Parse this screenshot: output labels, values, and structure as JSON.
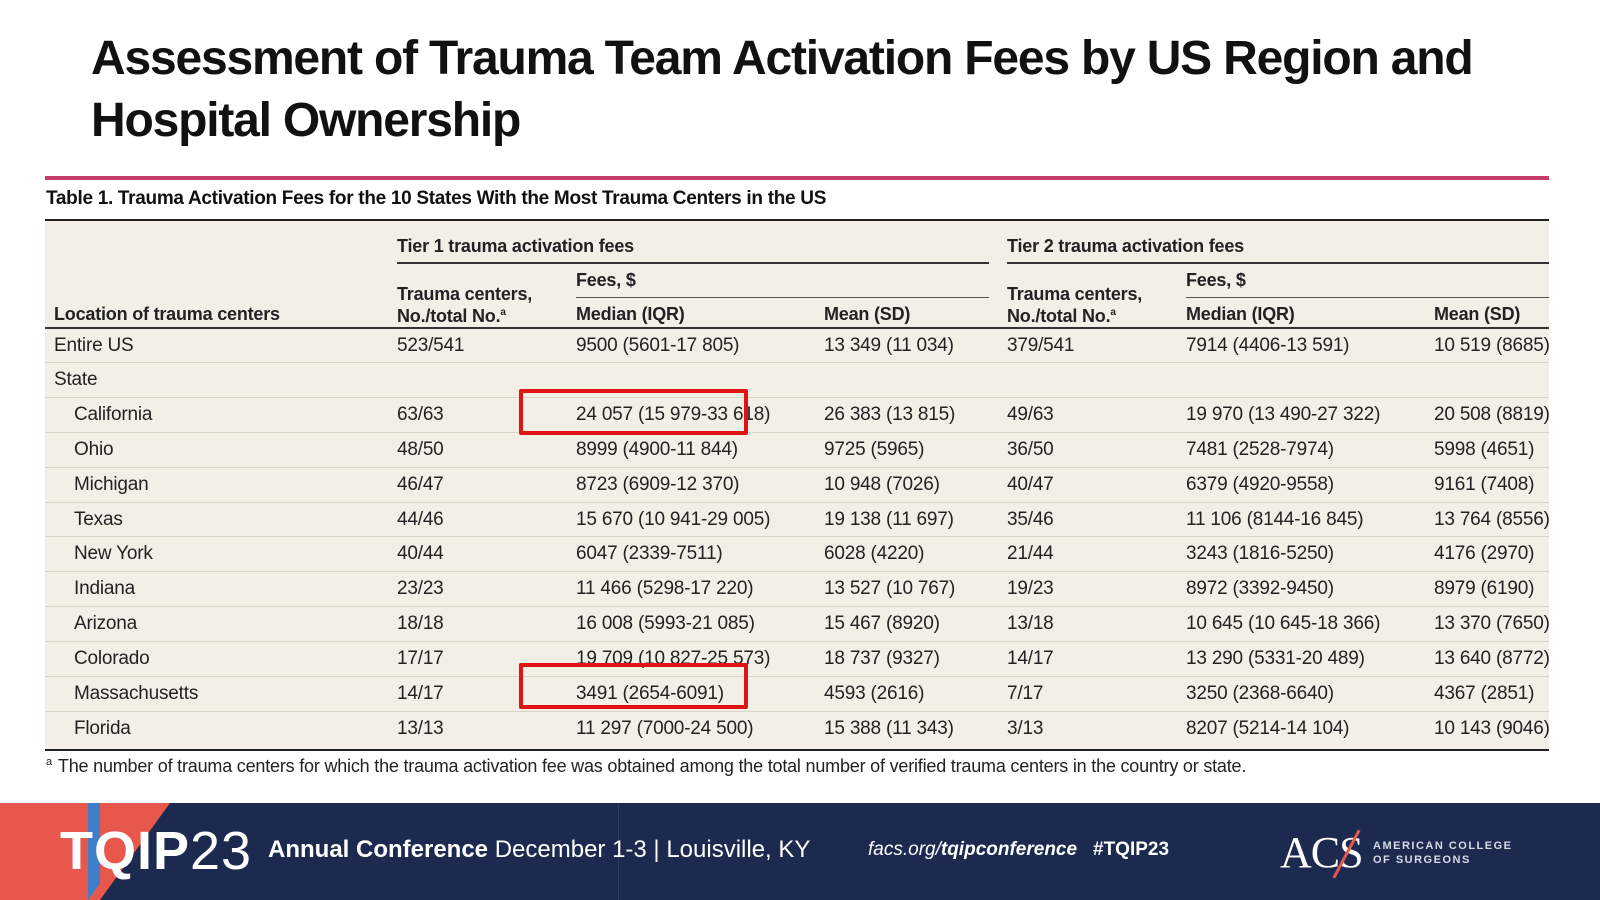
{
  "title": "Assessment of Trauma Team Activation Fees by US Region and Hospital Ownership",
  "caption": "Table 1. Trauma Activation Fees for the 10 States With the Most Trauma Centers in the US",
  "header": {
    "location": "Location of trauma centers",
    "tier1": "Tier 1 trauma activation fees",
    "tier2": "Tier 2 trauma activation fees",
    "centers_line1": "Trauma centers,",
    "centers_line2": "No./total No.",
    "sup_a": "a",
    "fees": "Fees, $",
    "median": "Median (IQR)",
    "mean": "Mean (SD)"
  },
  "rows": [
    {
      "loc": "Entire US",
      "t1c": "523/541",
      "t1med": "9500 (5601-17 805)",
      "t1mean": "13 349 (11 034)",
      "t2c": "379/541",
      "t2med": "7914 (4406-13 591)",
      "t2mean": "10 519 (8685)"
    },
    {
      "loc": "State",
      "t1c": "",
      "t1med": "",
      "t1mean": "",
      "t2c": "",
      "t2med": "",
      "t2mean": ""
    },
    {
      "loc": "California",
      "t1c": "63/63",
      "t1med": "24 057 (15 979-33 618)",
      "t1mean": "26 383 (13 815)",
      "t2c": "49/63",
      "t2med": "19 970 (13 490-27 322)",
      "t2mean": "20 508 (8819)"
    },
    {
      "loc": "Ohio",
      "t1c": "48/50",
      "t1med": "8999 (4900-11 844)",
      "t1mean": "9725 (5965)",
      "t2c": "36/50",
      "t2med": "7481 (2528-7974)",
      "t2mean": "5998 (4651)"
    },
    {
      "loc": "Michigan",
      "t1c": "46/47",
      "t1med": "8723 (6909-12 370)",
      "t1mean": "10 948 (7026)",
      "t2c": "40/47",
      "t2med": "6379 (4920-9558)",
      "t2mean": "9161 (7408)"
    },
    {
      "loc": "Texas",
      "t1c": "44/46",
      "t1med": "15 670 (10 941-29 005)",
      "t1mean": "19 138 (11 697)",
      "t2c": "35/46",
      "t2med": "11 106 (8144-16 845)",
      "t2mean": "13 764 (8556)"
    },
    {
      "loc": "New York",
      "t1c": "40/44",
      "t1med": "6047 (2339-7511)",
      "t1mean": "6028 (4220)",
      "t2c": "21/44",
      "t2med": "3243 (1816-5250)",
      "t2mean": "4176 (2970)"
    },
    {
      "loc": "Indiana",
      "t1c": "23/23",
      "t1med": "11 466 (5298-17 220)",
      "t1mean": "13 527 (10 767)",
      "t2c": "19/23",
      "t2med": "8972 (3392-9450)",
      "t2mean": "8979 (6190)"
    },
    {
      "loc": "Arizona",
      "t1c": "18/18",
      "t1med": "16 008 (5993-21 085)",
      "t1mean": "15 467 (8920)",
      "t2c": "13/18",
      "t2med": "10 645 (10 645-18 366)",
      "t2mean": "13 370 (7650)"
    },
    {
      "loc": "Colorado",
      "t1c": "17/17",
      "t1med": "19 709 (10 827-25 573)",
      "t1mean": "18 737 (9327)",
      "t2c": "14/17",
      "t2med": "13 290 (5331-20 489)",
      "t2mean": "13 640 (8772)"
    },
    {
      "loc": "Massachusetts",
      "t1c": "14/17",
      "t1med": "3491 (2654-6091)",
      "t1mean": "4593 (2616)",
      "t2c": "7/17",
      "t2med": "3250 (2368-6640)",
      "t2mean": "4367 (2851)"
    },
    {
      "loc": "Florida",
      "t1c": "13/13",
      "t1med": "11 297 (7000-24 500)",
      "t1mean": "15 388 (11 343)",
      "t2c": "3/13",
      "t2med": "8207 (5214-14 104)",
      "t2mean": "10 143 (9046)"
    }
  ],
  "footnote_sup": "a",
  "footnote": "The number of trauma centers for which the trauma activation fee was obtained among the total number of verified trauma centers in the country or state.",
  "footer": {
    "logo_letters": "TQIP",
    "logo_number": "23",
    "conf_bold": "Annual Conference",
    "conf_rest": "December 1-3 | Louisville, KY",
    "url_plain": "facs.org/",
    "url_bold": "tqipconference",
    "hashtag": "#TQIP23",
    "acs": "ACS",
    "acs_name": "AMERICAN COLLEGE OF SURGEONS"
  },
  "colors": {
    "accent_rule": "#c43a6a",
    "highlight": "#e01414",
    "table_bg": "#f2f0e6",
    "footer_bg": "#1b2a4e",
    "footer_coral": "#e8574c"
  }
}
